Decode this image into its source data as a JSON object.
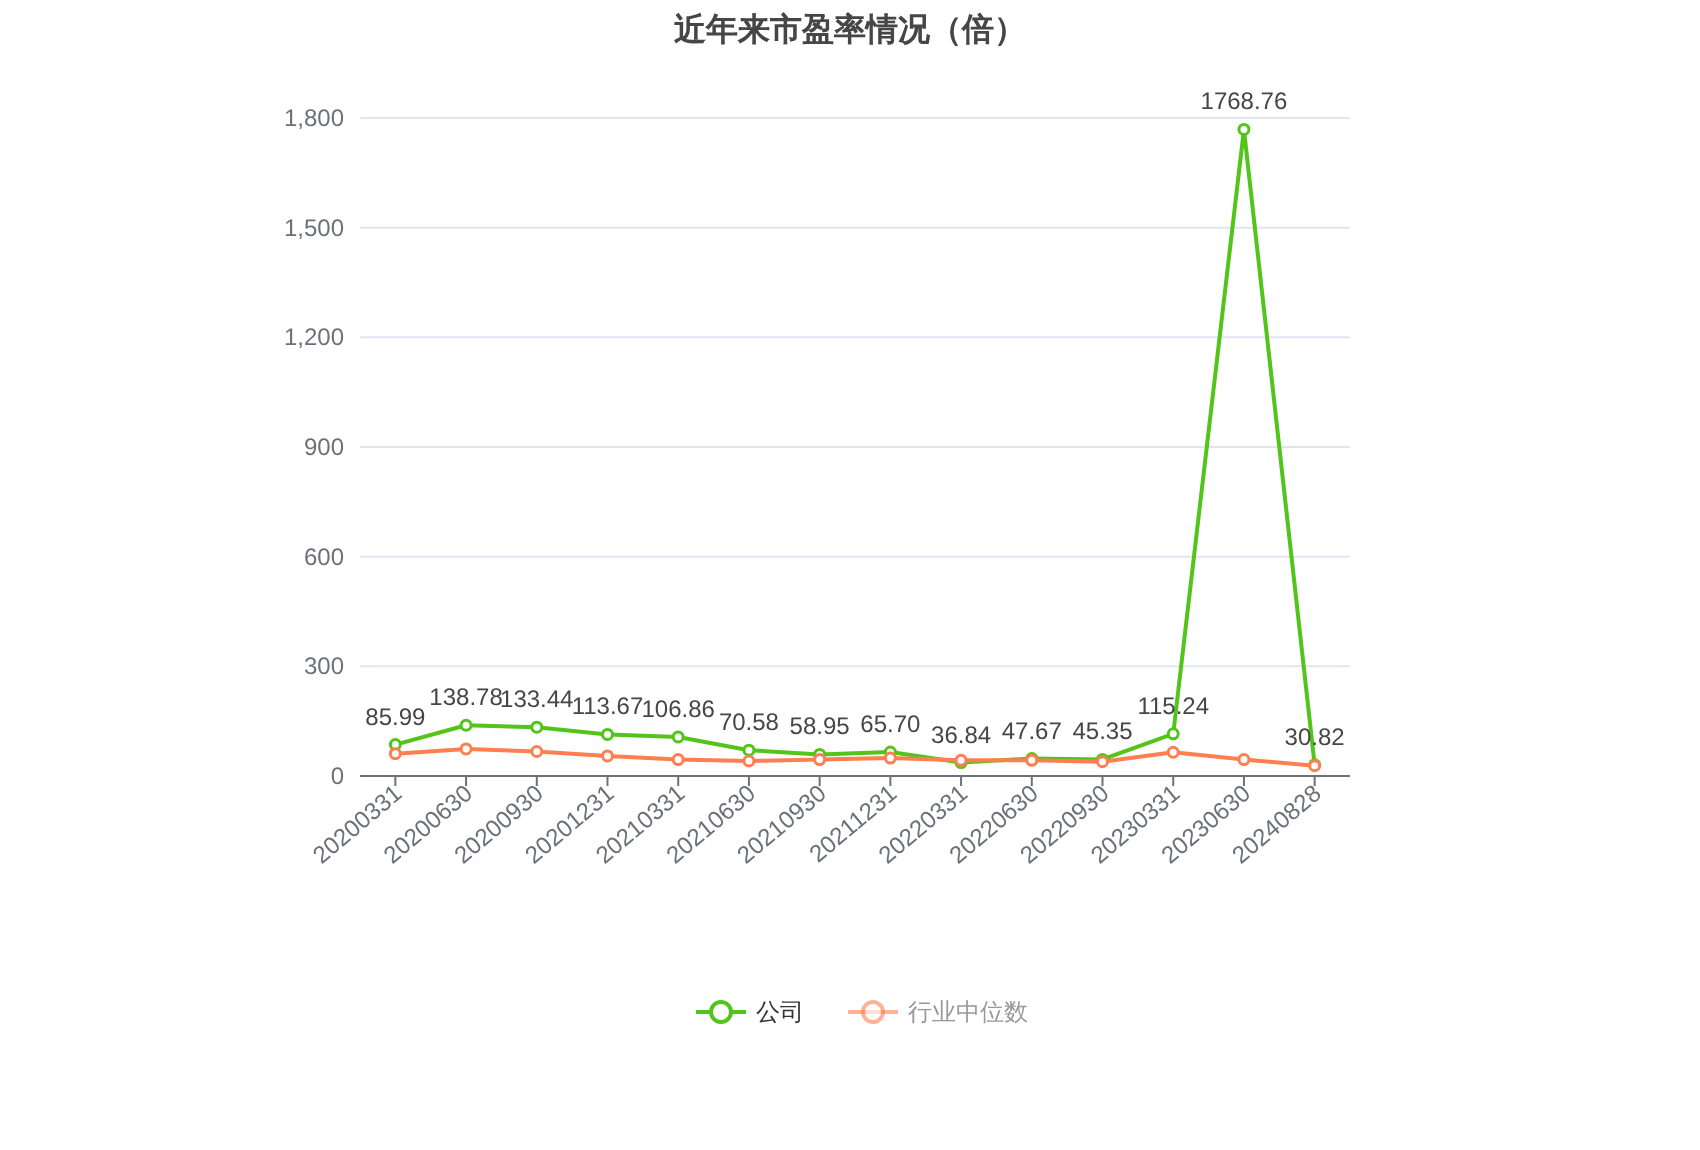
{
  "chart_data": {
    "type": "line",
    "title": "近年来市盈率情况（倍）",
    "categories": [
      "20200331",
      "20200630",
      "20200930",
      "20201231",
      "20210331",
      "20210630",
      "20210930",
      "20211231",
      "20220331",
      "20220630",
      "20220930",
      "20230331",
      "20230630",
      "20240828"
    ],
    "series": [
      {
        "name": "公司",
        "color": "#52c41a",
        "values": [
          85.99,
          138.78,
          133.44,
          113.67,
          106.86,
          70.58,
          58.95,
          65.7,
          36.84,
          47.67,
          45.35,
          115.24,
          1768.76,
          30.82
        ],
        "value_labels": [
          "85.99",
          "138.78",
          "133.44",
          "113.67",
          "106.86",
          "70.58",
          "58.95",
          "65.70",
          "36.84",
          "47.67",
          "45.35",
          "115.24",
          "1768.76",
          "30.82"
        ]
      },
      {
        "name": "行业中位数",
        "color": "#ff7f50",
        "values": [
          61,
          74,
          67,
          55,
          45,
          41,
          45,
          49,
          43,
          43,
          39,
          65,
          45,
          28
        ]
      }
    ],
    "ylim": [
      0,
      1800
    ],
    "yticks": [
      0,
      300,
      600,
      900,
      {
        "value": 1200,
        "label": "1,200"
      },
      {
        "value": 1500,
        "label": "1,500"
      },
      {
        "value": 1800,
        "label": "1,800"
      }
    ],
    "grid": "y",
    "legend": "bottom",
    "marker": "circle",
    "line_style": "solid"
  }
}
